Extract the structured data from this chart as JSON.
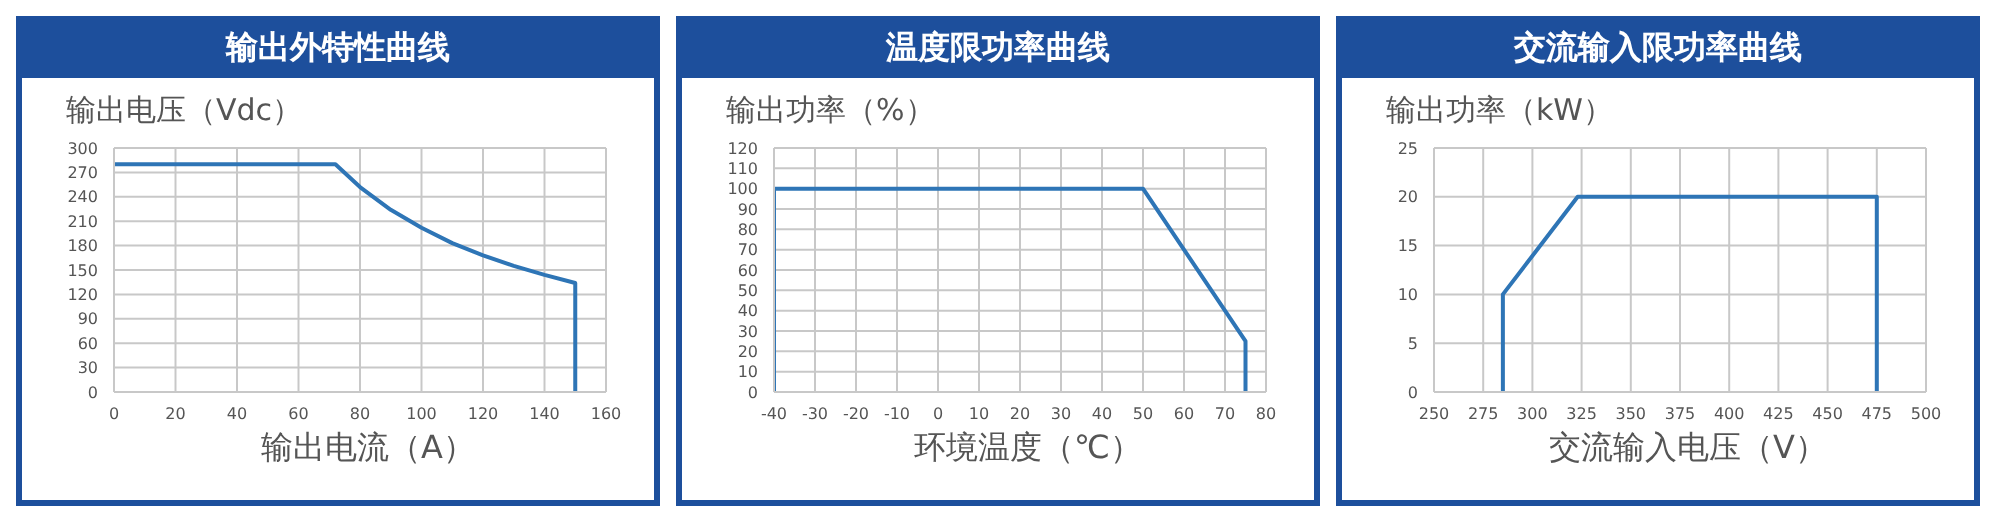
{
  "chart_data": [
    {
      "type": "line",
      "title": "输出外特性曲线",
      "ylabel": "输出电压（Vdc）",
      "xlabel": "输出电流（A）",
      "grid": true,
      "marker": "none",
      "line_style": "solid",
      "x": [
        0,
        72,
        80,
        90,
        100,
        110,
        120,
        130,
        140,
        150,
        150
      ],
      "series": [
        {
          "color": "#2e75b6",
          "values": [
            280,
            280,
            252,
            224,
            202,
            183,
            168,
            155,
            144,
            134,
            0
          ]
        }
      ],
      "xlim": [
        0,
        160
      ],
      "xticks": [
        0,
        20,
        40,
        60,
        80,
        100,
        120,
        140,
        160
      ],
      "ylim": [
        0,
        300
      ],
      "yticks": [
        0,
        30,
        60,
        90,
        120,
        150,
        180,
        210,
        240,
        270,
        300
      ]
    },
    {
      "type": "line",
      "title": "温度限功率曲线",
      "ylabel": "输出功率（%）",
      "xlabel": "环境温度（℃）",
      "grid": true,
      "marker": "none",
      "line_style": "solid",
      "x": [
        -40,
        -40,
        50,
        75,
        75
      ],
      "series": [
        {
          "color": "#2e75b6",
          "values": [
            0,
            100,
            100,
            25,
            0
          ]
        }
      ],
      "xlim": [
        -40,
        80
      ],
      "xticks": [
        -40,
        -30,
        -20,
        -10,
        0,
        10,
        20,
        30,
        40,
        50,
        60,
        70,
        80
      ],
      "ylim": [
        0,
        120
      ],
      "yticks": [
        0,
        10,
        20,
        30,
        40,
        50,
        60,
        70,
        80,
        90,
        100,
        110,
        120
      ]
    },
    {
      "type": "line",
      "title": "交流输入限功率曲线",
      "ylabel": "输出功率（kW）",
      "xlabel": "交流输入电压（V）",
      "grid": true,
      "marker": "none",
      "line_style": "solid",
      "x": [
        285,
        285,
        323,
        475,
        475
      ],
      "series": [
        {
          "color": "#2e75b6",
          "values": [
            0,
            10,
            20,
            20,
            0
          ]
        }
      ],
      "xlim": [
        250,
        500
      ],
      "xticks": [
        250,
        275,
        300,
        325,
        350,
        375,
        400,
        425,
        450,
        475,
        500
      ],
      "ylim": [
        0,
        25
      ],
      "yticks": [
        0,
        5,
        10,
        15,
        20,
        25
      ]
    }
  ]
}
